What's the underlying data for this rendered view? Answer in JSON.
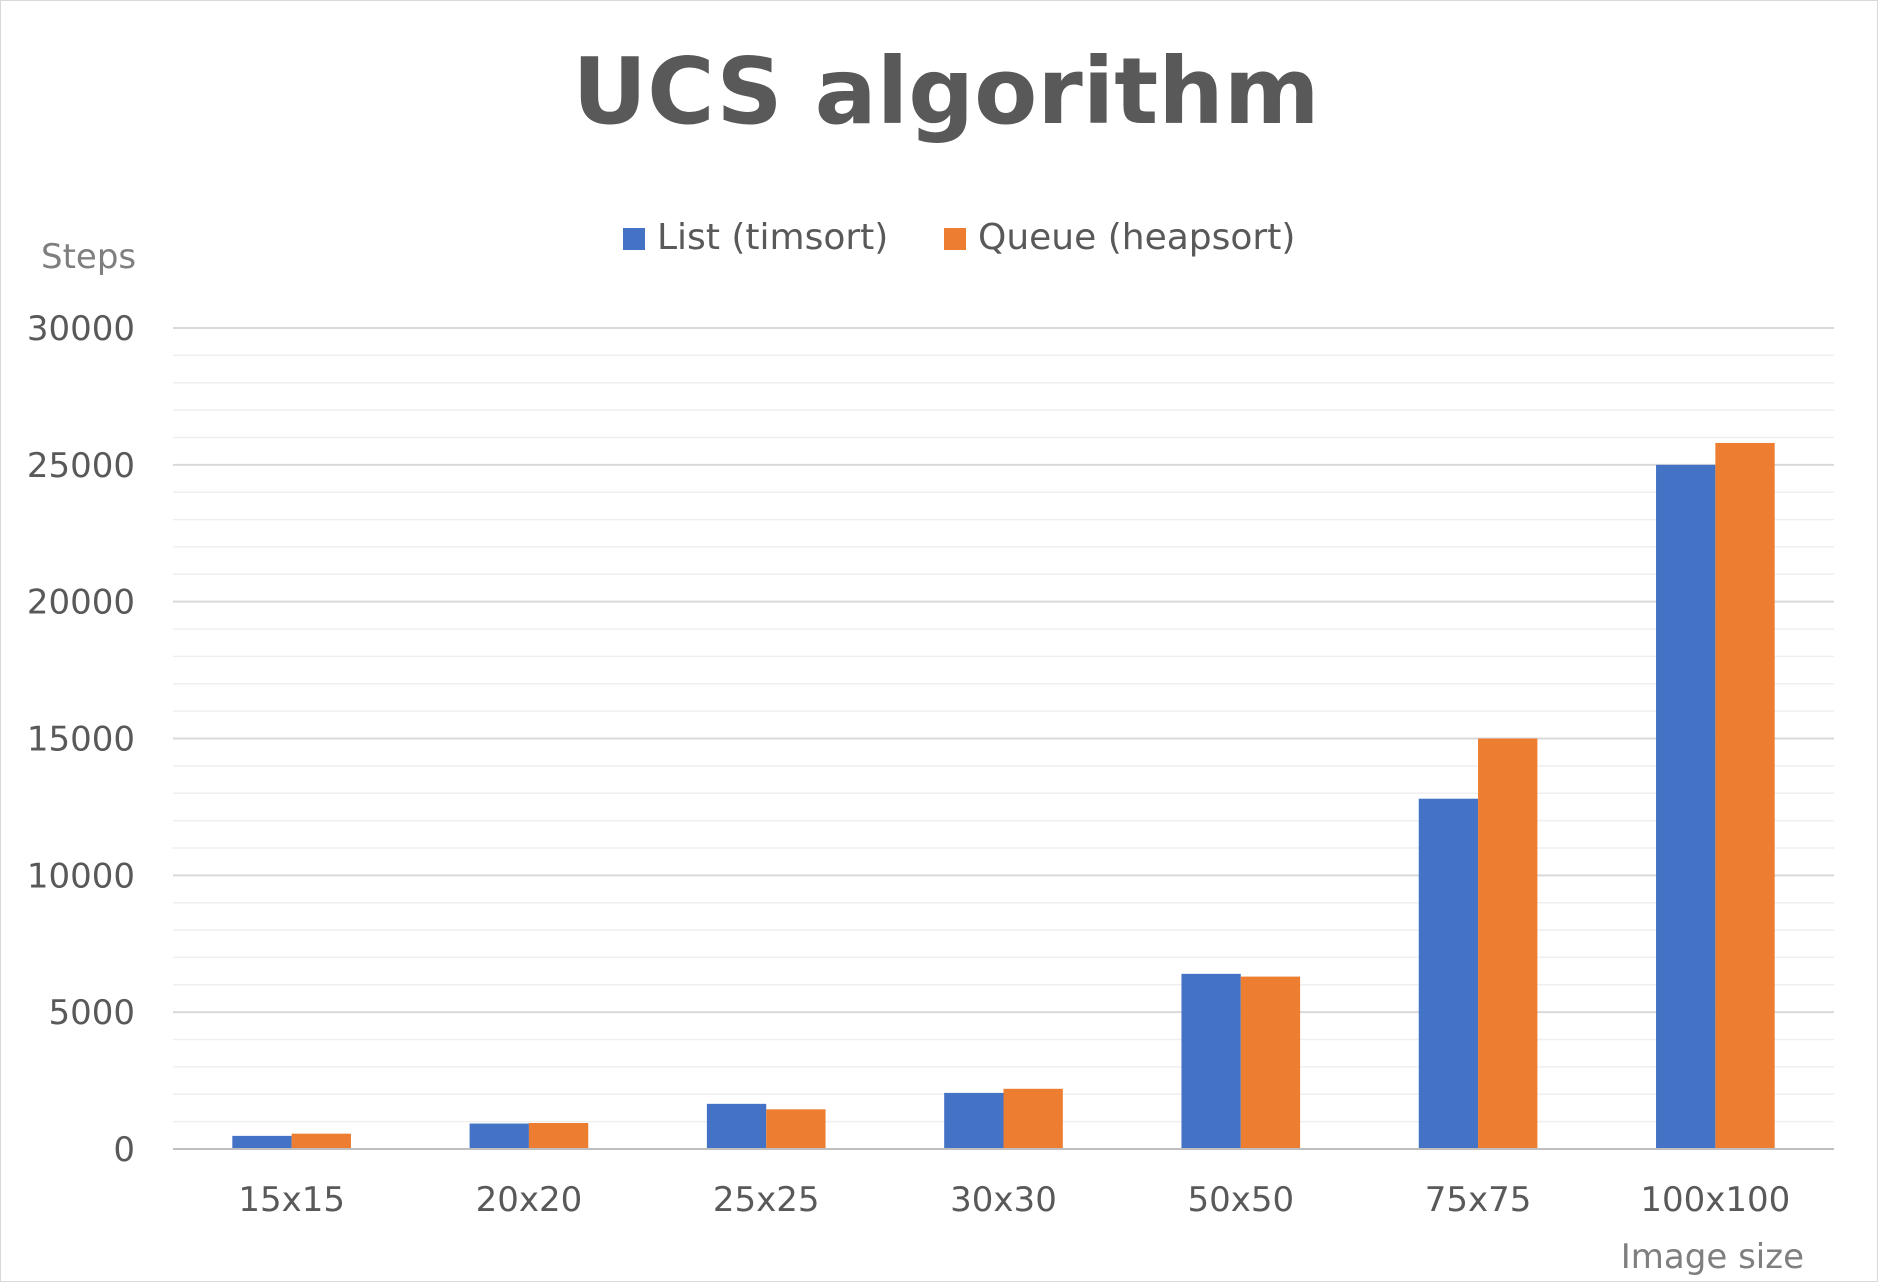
{
  "chart_data": {
    "type": "bar",
    "title": "UCS algorithm",
    "xlabel": "Image size",
    "ylabel": "Steps",
    "categories": [
      "15x15",
      "20x20",
      "25x25",
      "30x30",
      "50x50",
      "75x75",
      "100x100"
    ],
    "series": [
      {
        "name": "List (timsort)",
        "color": "#4472C4",
        "values": [
          480,
          930,
          1650,
          2050,
          6400,
          12800,
          25000
        ]
      },
      {
        "name": "Queue (heapsort)",
        "color": "#ED7D31",
        "values": [
          560,
          950,
          1450,
          2200,
          6300,
          15000,
          25800
        ]
      }
    ],
    "ylim": [
      0,
      30000
    ],
    "yticks": [
      0,
      5000,
      10000,
      15000,
      20000,
      25000,
      30000
    ],
    "ytick_labels": [
      "0",
      "5000",
      "10000",
      "15000",
      "20000",
      "25000",
      "30000"
    ],
    "minor_step": 1000,
    "grid": true,
    "legend_position": "top"
  }
}
